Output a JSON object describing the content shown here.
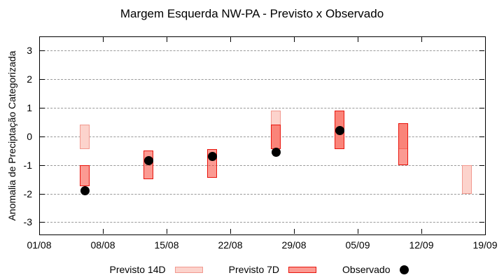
{
  "title": "Margem Esquerda NW-PA - Previsto x Observado",
  "y_axis": {
    "label": "Anomalia de Preciptação Categorizada",
    "ticks": [
      3,
      2,
      1,
      0,
      -1,
      -2,
      -3
    ]
  },
  "x_axis": {
    "tick_labels": [
      "01/08",
      "08/08",
      "15/08",
      "22/08",
      "29/08",
      "05/09",
      "12/09",
      "19/09"
    ],
    "tick_interval_days": 7
  },
  "legend": {
    "previsto_14d": "Previsto 14D",
    "previsto_7d": "Previsto 7D",
    "observado": "Observado"
  },
  "colors": {
    "background": "#ffffff",
    "axis": "#000000",
    "grid": "#999999",
    "previsto_14d_fill": "#fcd3cc",
    "previsto_14d_border": "#f2998f",
    "previsto_7d_fill": "rgba(247,53,37,0.5)",
    "previsto_7d_border": "#e8150d",
    "observado": "#000000"
  },
  "chart_data": {
    "type": "bar",
    "subtype": "range-bars-with-scatter",
    "title": "Margem Esquerda NW-PA - Previsto x Observado",
    "xlabel": "",
    "ylabel": "Anomalia de Preciptação Categorizada",
    "ylim": [
      -3.45,
      3.5
    ],
    "x_tick_labels": [
      "01/08",
      "08/08",
      "15/08",
      "22/08",
      "29/08",
      "05/09",
      "12/09",
      "19/09"
    ],
    "x_span_days": 49,
    "grid": "horizontal-dotted",
    "legend_position": "bottom-center",
    "series": [
      {
        "name": "Previsto 14D",
        "type": "range-bar",
        "points": [
          {
            "date": "06/08",
            "day": 5,
            "low": -0.45,
            "high": 0.4
          },
          {
            "date": "27/08",
            "day": 26,
            "low": -0.45,
            "high": 0.9
          },
          {
            "date": "03/09",
            "day": 33,
            "low": -0.45,
            "high": 0.9
          },
          {
            "date": "10/09",
            "day": 40,
            "low": -0.45,
            "high": 0.45
          },
          {
            "date": "17/09",
            "day": 47,
            "low": -2.0,
            "high": -1.0
          }
        ]
      },
      {
        "name": "Previsto 7D",
        "type": "range-bar",
        "points": [
          {
            "date": "06/08",
            "day": 5,
            "low": -1.75,
            "high": -1.0
          },
          {
            "date": "13/08",
            "day": 12,
            "low": -1.5,
            "high": -0.5
          },
          {
            "date": "20/08",
            "day": 19,
            "low": -1.45,
            "high": -0.45
          },
          {
            "date": "27/08",
            "day": 26,
            "low": -0.45,
            "high": 0.4
          },
          {
            "date": "03/09",
            "day": 33,
            "low": -0.45,
            "high": 0.9
          },
          {
            "date": "10/09",
            "day": 40,
            "low": -1.0,
            "high": 0.45
          }
        ]
      },
      {
        "name": "Observado",
        "type": "scatter",
        "points": [
          {
            "date": "06/08",
            "day": 5,
            "value": -1.9
          },
          {
            "date": "13/08",
            "day": 12,
            "value": -0.85
          },
          {
            "date": "20/08",
            "day": 19,
            "value": -0.7
          },
          {
            "date": "27/08",
            "day": 26,
            "value": -0.55
          },
          {
            "date": "03/09",
            "day": 33,
            "value": 0.2
          }
        ]
      }
    ]
  }
}
